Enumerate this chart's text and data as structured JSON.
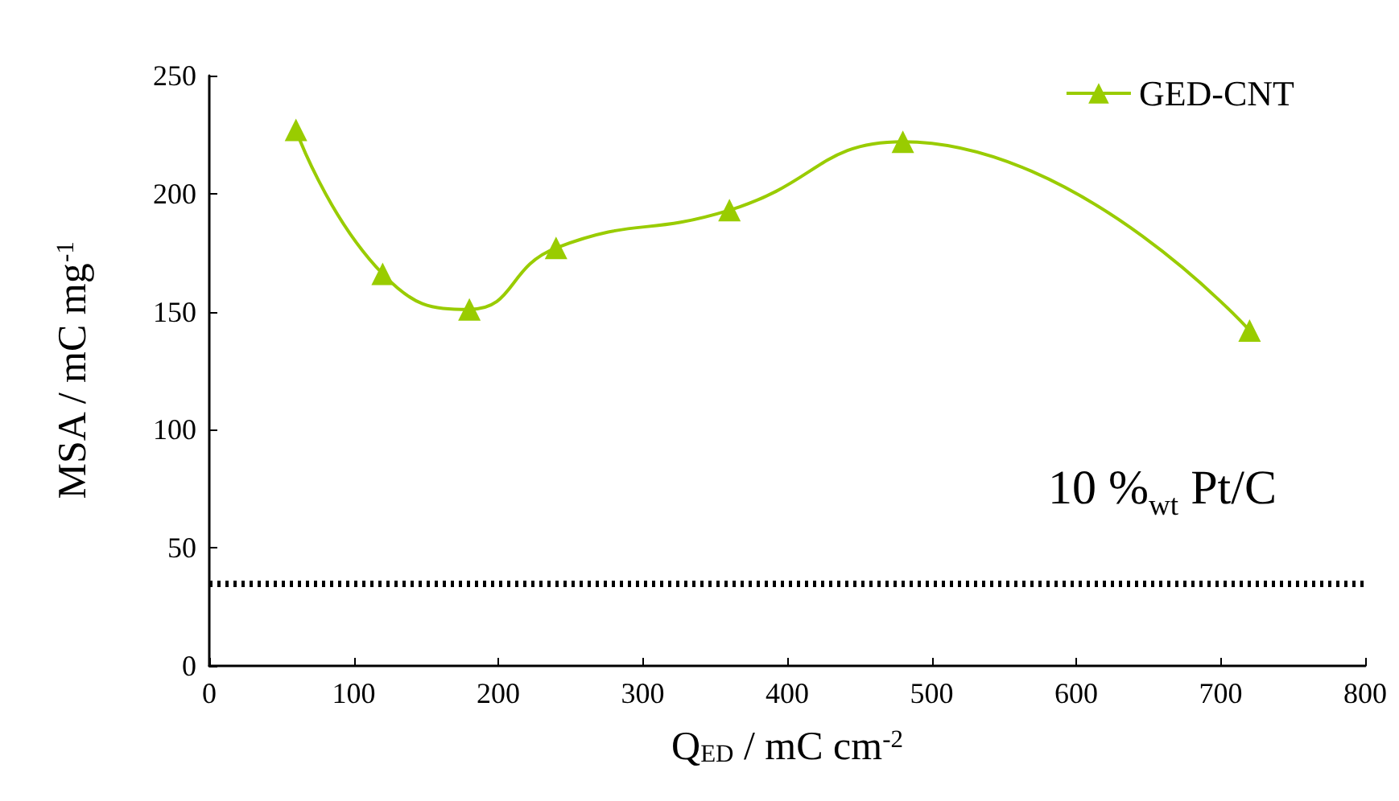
{
  "chart_data": {
    "type": "line",
    "xlabel": "Q$_{ED}$ / mC cm$^{-2}$",
    "ylabel": "MSA / mC mg$^{-1}$",
    "x": [
      60,
      120,
      180,
      240,
      360,
      480,
      720
    ],
    "series": [
      {
        "name": "GED-CNT",
        "color": "#99cc00",
        "values": [
          227,
          166,
          151,
          177,
          193,
          222,
          142
        ]
      }
    ],
    "xlim": [
      0,
      800
    ],
    "xticks": [
      0,
      100,
      200,
      300,
      400,
      500,
      600,
      700,
      800
    ],
    "ylim": [
      0,
      250
    ],
    "yticks": [
      0,
      50,
      100,
      150,
      200,
      250
    ],
    "ref_lines": [
      {
        "axis": "y",
        "value": 35,
        "label": "10 %$_{wt}$ Pt/C",
        "color": "#000000",
        "line_style": "dotted"
      }
    ],
    "marker": "triangle",
    "legend": "top right",
    "grid": false
  }
}
